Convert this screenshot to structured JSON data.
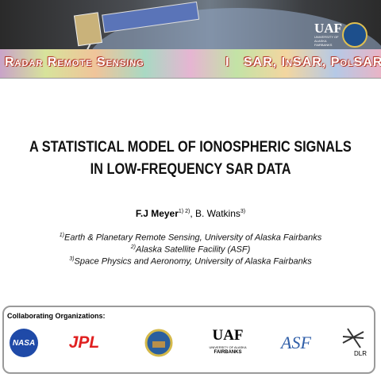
{
  "header": {
    "banner_left": "Radar Remote Sensing",
    "separator": "I",
    "banner_right": "SAR, InSAR, PolSAR",
    "uaf": "UAF",
    "uaf_sub": "UNIVERSITY OF ALASKA FAIRBANKS"
  },
  "title": [
    "A STATISTICAL MODEL OF IONOSPHERIC SIGNALS",
    "IN LOW-FREQUENCY SAR DATA"
  ],
  "authors": [
    {
      "name": "F.J Meyer",
      "sup": "1) 2)"
    },
    {
      "name": ", B. Watkins",
      "sup": "3)"
    }
  ],
  "affiliations": [
    {
      "sup": "1)",
      "text": "Earth & Planetary Remote Sensing, University of Alaska Fairbanks"
    },
    {
      "sup": "2)",
      "text": "Alaska Satellite Facility (ASF)"
    },
    {
      "sup": "3)",
      "text": "Space Physics and Aeronomy, University of Alaska Fairbanks"
    }
  ],
  "footer": {
    "label": "Collaborating Organizations:",
    "nasa": "NASA",
    "jpl": "JPL",
    "uaf": "UAF",
    "uaf_sub": "UNIVERSITY OF ALASKA",
    "uaf_city": "FAIRBANKS",
    "asf": "ASF",
    "dlr": "DLR"
  }
}
